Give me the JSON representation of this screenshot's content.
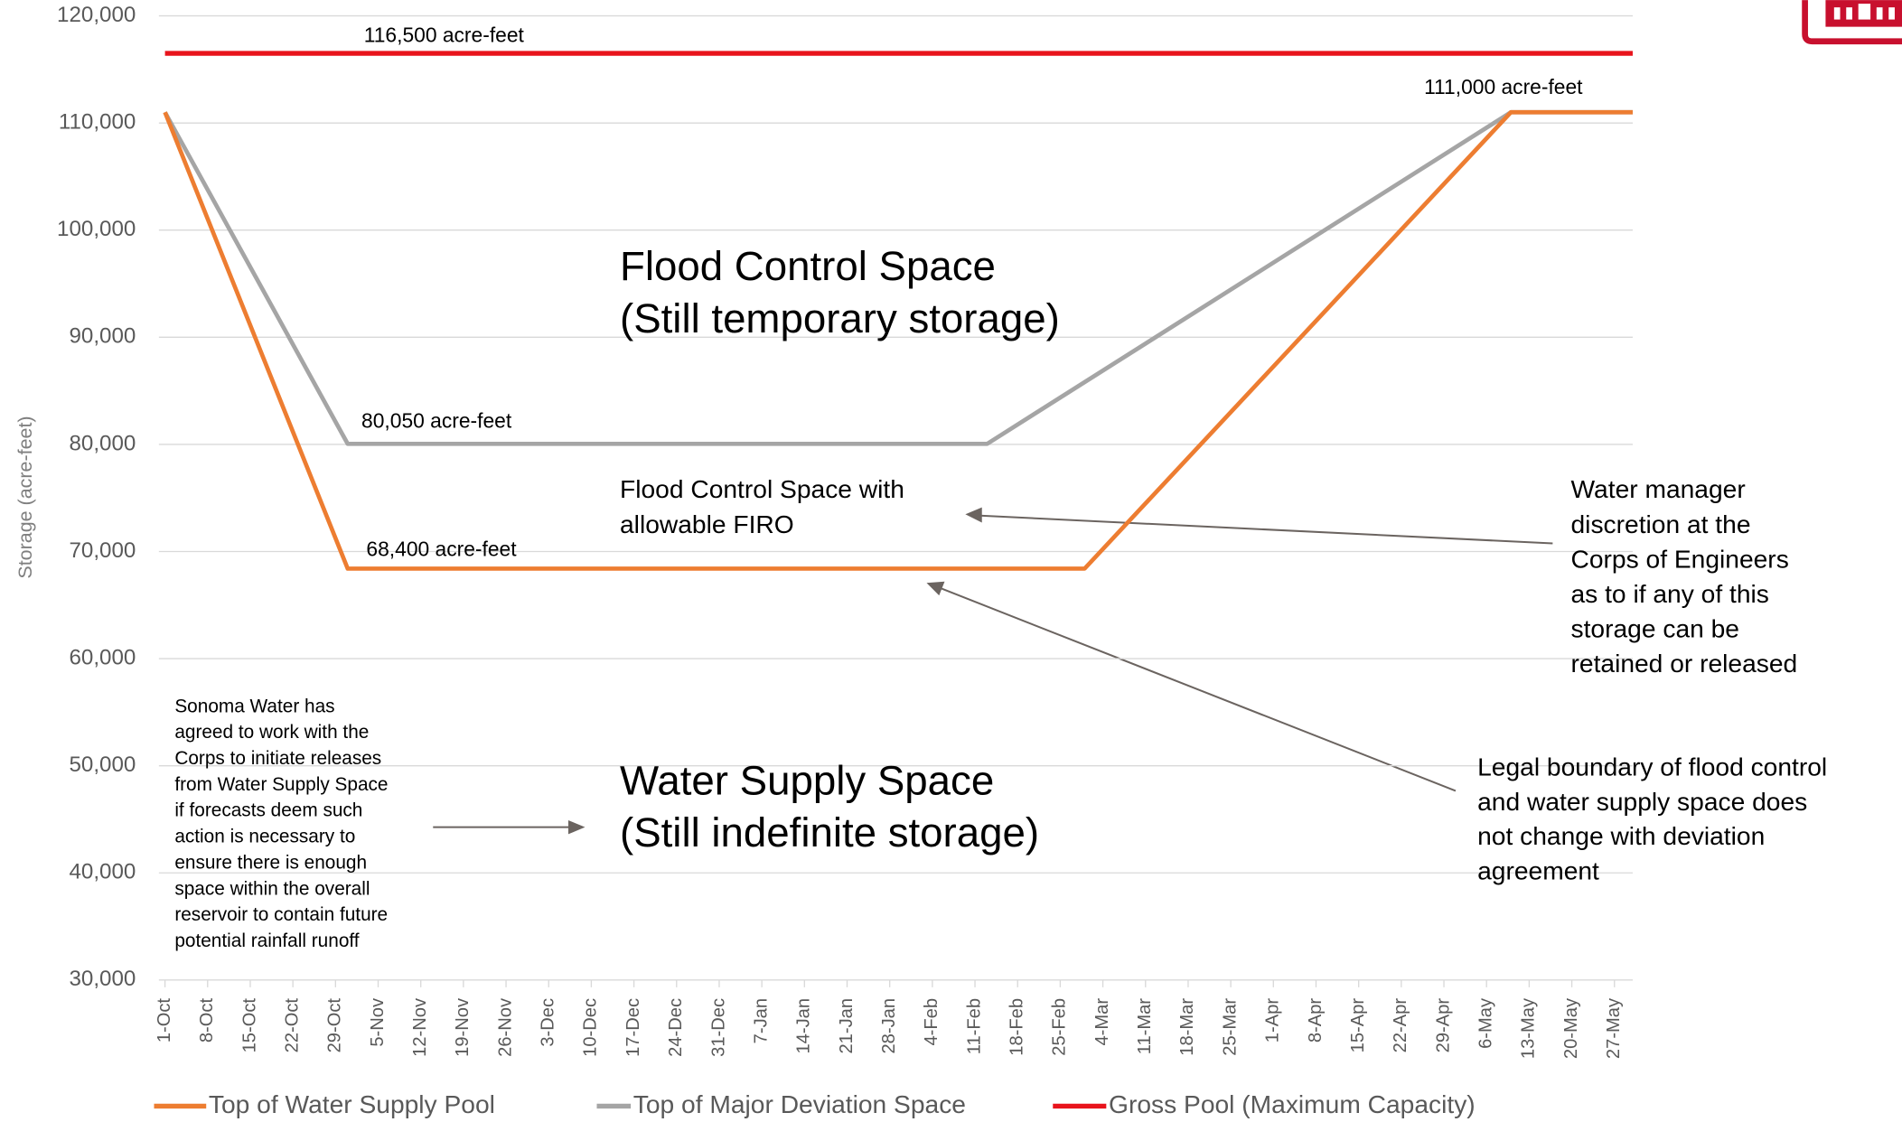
{
  "chart_data": {
    "type": "line",
    "ylabel": "Storage (acre-feet)",
    "ylim": [
      30000,
      120000
    ],
    "yticks": [
      {
        "value": 30000,
        "label": "30,000"
      },
      {
        "value": 40000,
        "label": "40,000"
      },
      {
        "value": 50000,
        "label": "50,000"
      },
      {
        "value": 60000,
        "label": "60,000"
      },
      {
        "value": 70000,
        "label": "70,000"
      },
      {
        "value": 80000,
        "label": "80,000"
      },
      {
        "value": 90000,
        "label": "90,000"
      },
      {
        "value": 100000,
        "label": "100,000"
      },
      {
        "value": 110000,
        "label": "110,000"
      },
      {
        "value": 120000,
        "label": "120,000"
      }
    ],
    "grid": true,
    "xlim": [
      "30-Sep",
      "30-May"
    ],
    "xticks": [
      "1-Oct",
      "8-Oct",
      "15-Oct",
      "22-Oct",
      "29-Oct",
      "5-Nov",
      "12-Nov",
      "19-Nov",
      "26-Nov",
      "3-Dec",
      "10-Dec",
      "17-Dec",
      "24-Dec",
      "31-Dec",
      "7-Jan",
      "14-Jan",
      "21-Jan",
      "28-Jan",
      "4-Feb",
      "11-Feb",
      "18-Feb",
      "25-Feb",
      "4-Mar",
      "11-Mar",
      "18-Mar",
      "25-Mar",
      "1-Apr",
      "8-Apr",
      "15-Apr",
      "22-Apr",
      "29-Apr",
      "6-May",
      "13-May",
      "20-May",
      "27-May"
    ],
    "legend": "bottom",
    "series": [
      {
        "name": "Top of Water Supply Pool",
        "color": "#ed7d31",
        "x": [
          "1-Oct",
          "31-Oct",
          "1-Mar",
          "10-May",
          "30-May"
        ],
        "values": [
          111000,
          68400,
          68400,
          111000,
          111000
        ]
      },
      {
        "name": "Top of Major Deviation Space",
        "color": "#a5a5a5",
        "x": [
          "1-Oct",
          "31-Oct",
          "13-Feb",
          "10-May",
          "30-May"
        ],
        "values": [
          111000,
          80050,
          80050,
          111000,
          111000
        ]
      },
      {
        "name": "Gross Pool (Maximum Capacity)",
        "color": "#e8141c",
        "x": [
          "1-Oct",
          "30-May"
        ],
        "values": [
          116500,
          116500
        ]
      }
    ],
    "annotations": [
      {
        "lines": [
          "116,500 acre-feet"
        ]
      },
      {
        "lines": [
          "111,000 acre-feet"
        ]
      },
      {
        "lines": [
          "80,050 acre-feet"
        ]
      },
      {
        "lines": [
          "68,400 acre-feet"
        ]
      },
      {
        "lines": [
          "Flood Control Space",
          "(Still temporary storage)"
        ]
      },
      {
        "lines": [
          "Flood Control Space with",
          "allowable FIRO"
        ]
      },
      {
        "lines": [
          "Water manager",
          "discretion at the",
          "Corps of Engineers",
          "as to if any of this",
          "storage can be",
          "retained or released"
        ]
      },
      {
        "lines": [
          "Legal boundary of flood control",
          "and water supply space does",
          "not change with deviation",
          "agreement"
        ]
      },
      {
        "lines": [
          "Water Supply Space",
          "(Still indefinite storage)"
        ]
      },
      {
        "lines": [
          "Sonoma Water has",
          "agreed to work with the",
          "Corps to initiate releases",
          "from Water Supply Space",
          "if forecasts deem such",
          "action is necessary to",
          "ensure there is enough",
          "space within the overall",
          "reservoir to contain future",
          "potential rainfall runoff"
        ]
      }
    ]
  }
}
